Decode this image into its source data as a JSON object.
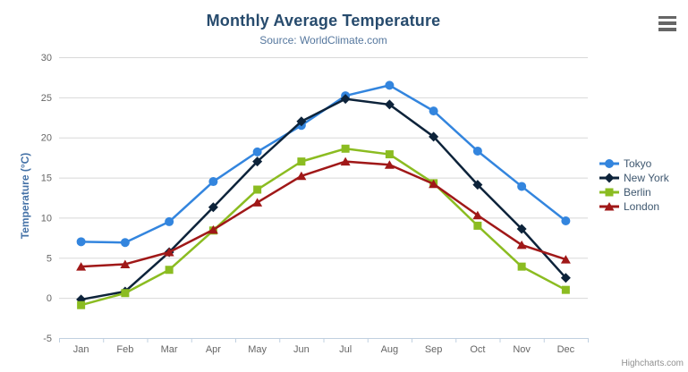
{
  "header": {
    "title": "Monthly Average Temperature",
    "subtitle": "Source: WorldClimate.com"
  },
  "credit": {
    "label": "Highcharts.com"
  },
  "icons": {
    "context_menu": "hamburger-menu-icon"
  },
  "colors": {
    "title": "#274B6D",
    "subtitle": "#55779E",
    "y_axis_title": "#4572A7",
    "tick_label": "#666666",
    "grid": "#D8D8D8",
    "axis_line": "#C0D0E0",
    "legend_text": "#3E576F",
    "credit": "#909090",
    "menu_icon": "#666666"
  },
  "chart_data": {
    "type": "line",
    "title": "Monthly Average Temperature",
    "subtitle": "Source: WorldClimate.com",
    "categories": [
      "Jan",
      "Feb",
      "Mar",
      "Apr",
      "May",
      "Jun",
      "Jul",
      "Aug",
      "Sep",
      "Oct",
      "Nov",
      "Dec"
    ],
    "xlabel": "",
    "ylabel": "Temperature (°C)",
    "ylim": [
      -5,
      30
    ],
    "ytick_step": 5,
    "grid": true,
    "legend_position": "right",
    "series": [
      {
        "name": "Tokyo",
        "color": "#3385DE",
        "marker": "circle",
        "values": [
          7.0,
          6.9,
          9.5,
          14.5,
          18.2,
          21.5,
          25.2,
          26.5,
          23.3,
          18.3,
          13.9,
          9.6
        ]
      },
      {
        "name": "New York",
        "color": "#0D233A",
        "marker": "diamond",
        "values": [
          -0.2,
          0.8,
          5.7,
          11.3,
          17.0,
          22.0,
          24.8,
          24.1,
          20.1,
          14.1,
          8.6,
          2.5
        ]
      },
      {
        "name": "Berlin",
        "color": "#8BBC21",
        "marker": "square",
        "values": [
          -0.9,
          0.6,
          3.5,
          8.4,
          13.5,
          17.0,
          18.6,
          17.9,
          14.3,
          9.0,
          3.9,
          1.0
        ]
      },
      {
        "name": "London",
        "color": "#A01818",
        "marker": "triangle",
        "values": [
          3.9,
          4.2,
          5.7,
          8.5,
          11.9,
          15.2,
          17.0,
          16.6,
          14.2,
          10.3,
          6.6,
          4.8
        ]
      }
    ]
  }
}
